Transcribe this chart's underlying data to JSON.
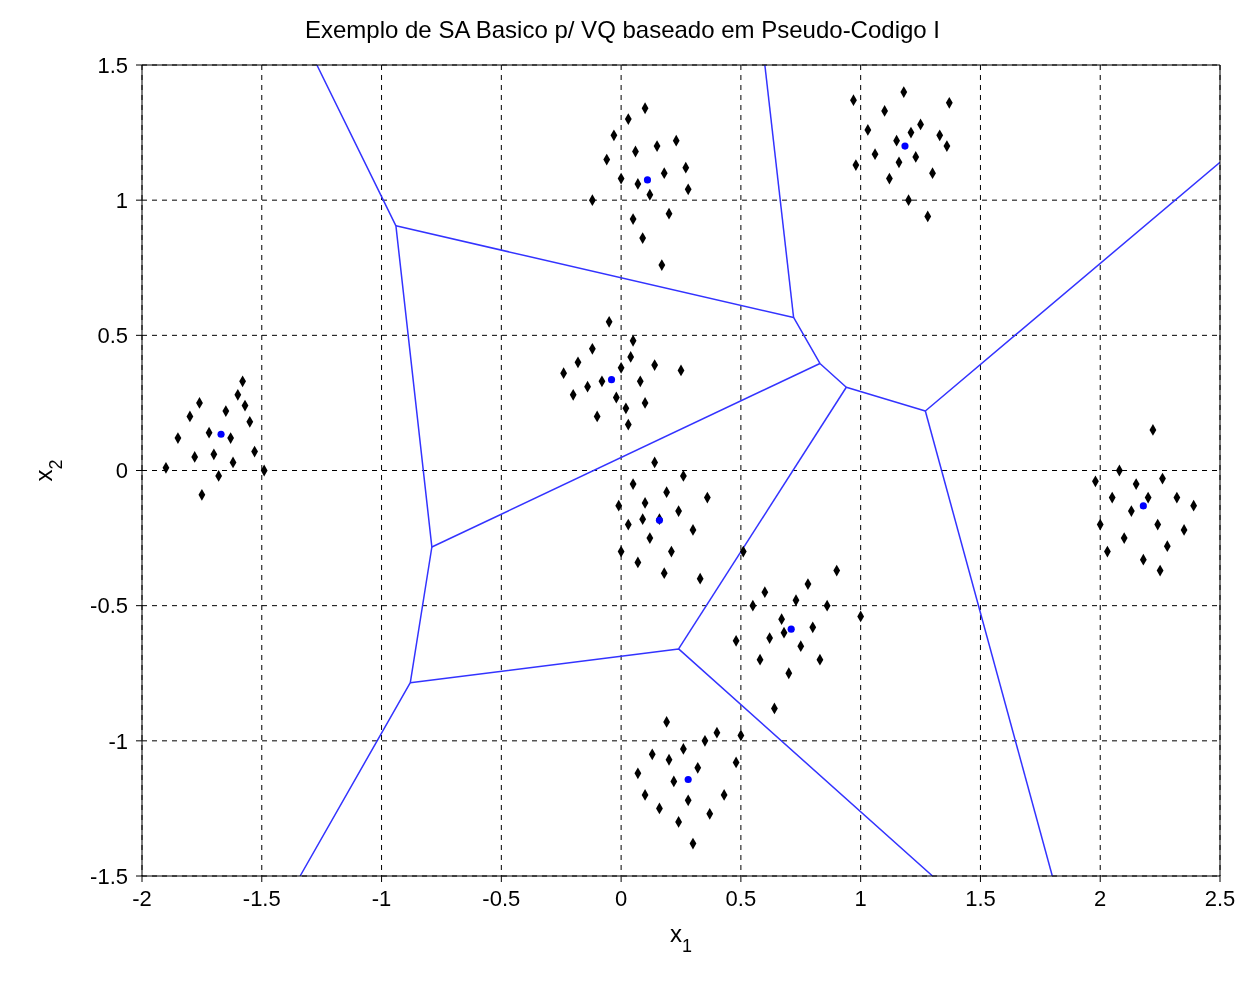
{
  "chart_data": {
    "type": "scatter",
    "title": "Exemplo de SA Basico p/ VQ baseado em Pseudo-Codigo I",
    "xlabel": "x$_{1}$",
    "ylabel": "x$_{2}$",
    "xlim": [
      -2,
      2.5
    ],
    "xticks": [
      -2,
      -1.5,
      -1,
      -0.5,
      0,
      0.5,
      1,
      1.5,
      2,
      2.5
    ],
    "ylim": [
      -1.5,
      1.5
    ],
    "yticks": [
      -1.5,
      -1,
      -0.5,
      0,
      0.5,
      1,
      1.5
    ],
    "grid": true,
    "marker": "diamond",
    "series": [
      {
        "color": "#000000",
        "x": [
          -1.9,
          -1.85,
          -1.8,
          -1.76,
          -1.72,
          -1.7,
          -1.75,
          -1.65,
          -1.62,
          -1.6,
          -1.58,
          -1.55,
          -1.53,
          -1.49,
          -1.68,
          -1.78,
          -1.63,
          -1.57,
          -0.24,
          -0.2,
          -0.18,
          -0.12,
          -0.1,
          -0.05,
          -0.02,
          0.0,
          0.03,
          0.05,
          0.08,
          0.1,
          0.14,
          0.25,
          -0.08,
          0.04,
          -0.14,
          0.02,
          -0.12,
          -0.06,
          -0.03,
          0.0,
          0.03,
          0.05,
          0.06,
          0.09,
          0.1,
          0.12,
          0.15,
          0.18,
          0.2,
          0.23,
          0.27,
          0.28,
          0.17,
          0.07,
          0.97,
          0.98,
          1.03,
          1.06,
          1.1,
          1.12,
          1.15,
          1.18,
          1.2,
          1.23,
          1.25,
          1.28,
          1.3,
          1.33,
          1.37,
          1.36,
          1.16,
          1.21,
          -0.01,
          0.0,
          0.03,
          0.05,
          0.07,
          0.1,
          0.12,
          0.14,
          0.16,
          0.19,
          0.21,
          0.24,
          0.26,
          0.3,
          0.33,
          0.36,
          0.18,
          0.09,
          0.48,
          0.51,
          0.55,
          0.58,
          0.6,
          0.62,
          0.64,
          0.67,
          0.7,
          0.73,
          0.75,
          0.78,
          0.8,
          0.83,
          0.86,
          0.9,
          1.0,
          0.68,
          0.07,
          0.1,
          0.13,
          0.16,
          0.19,
          0.22,
          0.24,
          0.26,
          0.28,
          0.3,
          0.32,
          0.35,
          0.37,
          0.4,
          0.43,
          0.48,
          0.5,
          0.2,
          1.98,
          2.0,
          2.03,
          2.05,
          2.08,
          2.1,
          2.13,
          2.15,
          2.18,
          2.2,
          2.22,
          2.24,
          2.26,
          2.28,
          2.32,
          2.35,
          2.39,
          2.25
        ],
        "values": [
          0.01,
          0.12,
          0.2,
          0.25,
          0.14,
          0.06,
          -0.09,
          0.22,
          0.03,
          0.28,
          0.33,
          0.18,
          0.07,
          0.0,
          -0.02,
          0.05,
          0.12,
          0.24,
          0.36,
          0.28,
          0.4,
          0.45,
          0.2,
          0.55,
          0.27,
          0.38,
          0.17,
          0.48,
          0.33,
          0.25,
          0.39,
          0.37,
          0.33,
          0.42,
          0.31,
          0.23,
          1.0,
          1.15,
          1.24,
          1.08,
          1.3,
          0.93,
          1.18,
          0.86,
          1.34,
          1.02,
          1.2,
          1.1,
          0.95,
          1.22,
          1.12,
          1.04,
          0.76,
          1.06,
          1.37,
          1.13,
          1.26,
          1.17,
          1.33,
          1.08,
          1.22,
          1.4,
          1.0,
          1.16,
          1.28,
          0.94,
          1.1,
          1.24,
          1.36,
          1.2,
          1.14,
          1.25,
          -0.13,
          -0.3,
          -0.2,
          -0.05,
          -0.34,
          -0.12,
          -0.25,
          0.03,
          -0.18,
          -0.08,
          -0.3,
          -0.15,
          -0.02,
          -0.22,
          -0.4,
          -0.1,
          -0.38,
          -0.18,
          -0.63,
          -0.3,
          -0.5,
          -0.7,
          -0.45,
          -0.62,
          -0.88,
          -0.55,
          -0.75,
          -0.48,
          -0.65,
          -0.42,
          -0.58,
          -0.7,
          -0.5,
          -0.37,
          -0.54,
          -0.6,
          -1.12,
          -1.2,
          -1.05,
          -1.25,
          -0.93,
          -1.15,
          -1.3,
          -1.03,
          -1.22,
          -1.38,
          -1.1,
          -1.0,
          -1.27,
          -0.97,
          -1.2,
          -1.08,
          -0.98,
          -1.07,
          -0.04,
          -0.2,
          -0.3,
          -0.1,
          0.0,
          -0.25,
          -0.15,
          -0.05,
          -0.33,
          -0.1,
          0.15,
          -0.2,
          -0.03,
          -0.28,
          -0.1,
          -0.22,
          -0.13,
          -0.37
        ]
      },
      {
        "color": "#0000ff",
        "marker": "circle",
        "x": [
          -1.67,
          -0.04,
          0.11,
          1.185,
          0.16,
          0.71,
          0.28,
          2.18
        ],
        "values": [
          0.134,
          0.336,
          1.075,
          1.2,
          -0.184,
          -0.587,
          -1.143,
          -0.131
        ]
      },
      {
        "type": "line",
        "color": "#3333ff",
        "marker": "none",
        "line_style": "solid",
        "x": [
          -1.27,
          -0.94,
          -0.79,
          -0.88,
          -1.34
        ],
        "values": [
          1.5,
          0.905,
          -0.283,
          -0.785,
          -1.5
        ]
      },
      {
        "type": "line",
        "color": "#3333ff",
        "marker": "none",
        "line_style": "solid",
        "x": [
          -0.94,
          0.72,
          0.83,
          0.94,
          1.27,
          2.5
        ],
        "values": [
          0.905,
          0.566,
          0.396,
          0.308,
          0.22,
          1.14
        ]
      },
      {
        "type": "line",
        "color": "#3333ff",
        "marker": "none",
        "line_style": "solid",
        "x": [
          0.6,
          0.72
        ],
        "values": [
          1.5,
          0.566
        ]
      },
      {
        "type": "line",
        "color": "#3333ff",
        "marker": "none",
        "line_style": "solid",
        "x": [
          -0.79,
          0.83
        ],
        "values": [
          -0.283,
          0.396
        ]
      },
      {
        "type": "line",
        "color": "#3333ff",
        "marker": "none",
        "line_style": "solid",
        "x": [
          -0.88,
          0.24,
          1.3
        ],
        "values": [
          -0.785,
          -0.66,
          -1.5
        ]
      },
      {
        "type": "line",
        "color": "#3333ff",
        "marker": "none",
        "line_style": "solid",
        "x": [
          0.24,
          0.94
        ],
        "values": [
          -0.66,
          0.308
        ]
      },
      {
        "type": "line",
        "color": "#3333ff",
        "marker": "none",
        "line_style": "solid",
        "x": [
          1.27,
          1.8
        ],
        "values": [
          0.22,
          -1.5
        ]
      }
    ]
  }
}
